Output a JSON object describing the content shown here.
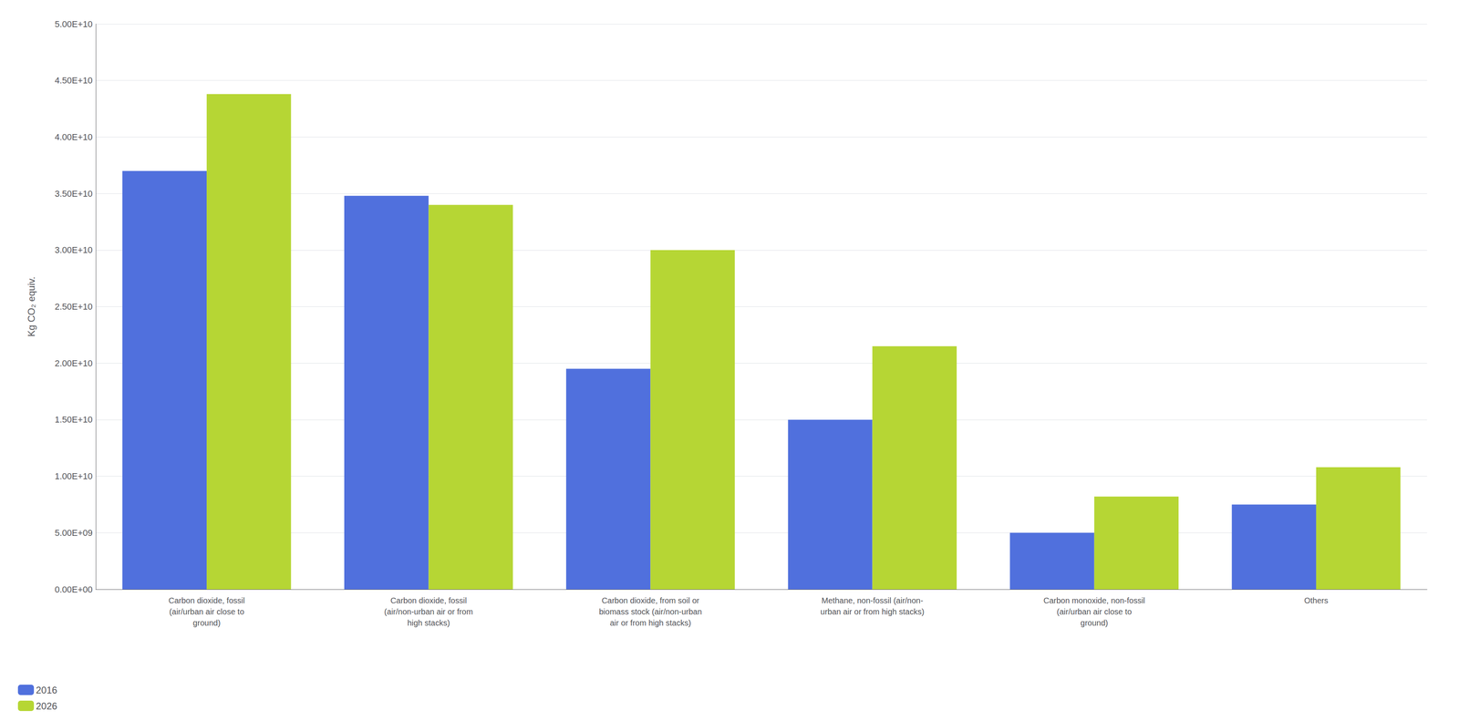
{
  "chart_data": {
    "type": "bar",
    "categories": [
      "Carbon dioxide, fossil\n(air/urban air close to\nground)",
      "Carbon dioxide, fossil\n(air/non-urban air or from\nhigh stacks)",
      "Carbon dioxide, from soil or\nbiomass stock (air/non-urban\nair or from high stacks)",
      "Methane, non-fossil (air/non-\nurban air or from high stacks)",
      "Carbon monoxide, non-fossil\n(air/urban air close to\nground)",
      "Others"
    ],
    "series": [
      {
        "name": "2016",
        "values": [
          37000000000.0,
          34800000000.0,
          19500000000.0,
          15000000000.0,
          5000000000.0,
          7500000000.0
        ]
      },
      {
        "name": "2026",
        "values": [
          43800000000.0,
          34000000000.0,
          30000000000.0,
          21500000000.0,
          8200000000.0,
          10800000000.0
        ]
      }
    ],
    "ylabel": "Kg CO₂ equiv.",
    "ylim": [
      0,
      50000000000.0
    ],
    "yticks": [
      {
        "value": 0,
        "label": "0.00E+00"
      },
      {
        "value": 5000000000.0,
        "label": "5.00E+09"
      },
      {
        "value": 10000000000.0,
        "label": "1.00E+10"
      },
      {
        "value": 15000000000.0,
        "label": "1.50E+10"
      },
      {
        "value": 20000000000.0,
        "label": "2.00E+10"
      },
      {
        "value": 25000000000.0,
        "label": "2.50E+10"
      },
      {
        "value": 30000000000.0,
        "label": "3.00E+10"
      },
      {
        "value": 35000000000.0,
        "label": "3.50E+10"
      },
      {
        "value": 40000000000.0,
        "label": "4.00E+10"
      },
      {
        "value": 45000000000.0,
        "label": "4.50E+10"
      },
      {
        "value": 50000000000.0,
        "label": "5.00E+10"
      }
    ],
    "grid": true,
    "legend": "lower left"
  }
}
